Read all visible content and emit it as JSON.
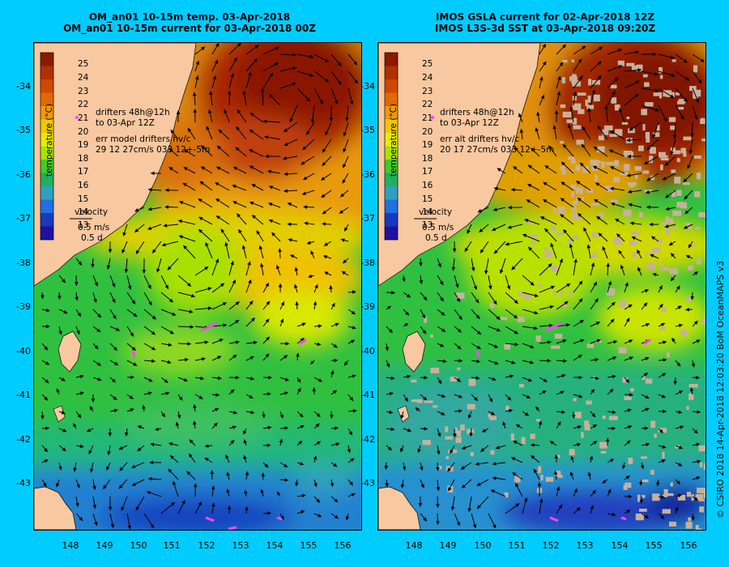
{
  "left": {
    "title_line1": "OM_an01 10-15m temp. 03-Apr-2018",
    "title_line2": "OM_an01 10-15m current for 03-Apr-2018 00Z",
    "drifters_line1": "drifters 48h@12h",
    "drifters_line2": "to 03-Apr 12Z",
    "err_line1": "err model drifters hv/c",
    "err_line2": "29 12 27cm/s 033 12+-5m"
  },
  "right": {
    "title_line1": "IMOS GSLA current for 02-Apr-2018 12Z",
    "title_line2": "IMOS L3S-3d SST at 03-Apr-2018 09:20Z",
    "drifters_line1": "drifters 48h@12h",
    "drifters_line2": "to 03-Apr 12Z",
    "err_line1": "err alt drifters hv/c",
    "err_line2": "20 17 27cm/s 033 12+-5m"
  },
  "colorbar": {
    "label": "temperature (°C)",
    "ticks": [
      "25",
      "24",
      "23",
      "22",
      "21",
      "20",
      "19",
      "18",
      "17",
      "16",
      "15",
      "14",
      "13"
    ],
    "colors": [
      "#8a1a00",
      "#b03000",
      "#d04800",
      "#e06a00",
      "#f09a00",
      "#f0c800",
      "#e8ec00",
      "#a8e400",
      "#40cc20",
      "#20b060",
      "#30a0c0",
      "#2070e0",
      "#1838c0",
      "#2010a0"
    ]
  },
  "velocity": {
    "label": "velocity",
    "speed": "0.5 m/s",
    "time": "0.5 d"
  },
  "lat_labels": [
    "-34",
    "-35",
    "-36",
    "-37",
    "-38",
    "-39",
    "-40",
    "-41",
    "-42",
    "-43"
  ],
  "lon_labels": [
    "148",
    "149",
    "150",
    "151",
    "152",
    "153",
    "154",
    "155",
    "156"
  ],
  "credit": "© CSIRO 2018   14-Apr-2018 12:03:20 BoM OceanMAPS v3",
  "colors": {
    "background": "#00ccff",
    "land": "#f8c8a0",
    "drifter": "#ff44ff",
    "cloud": "#c8b09a"
  }
}
